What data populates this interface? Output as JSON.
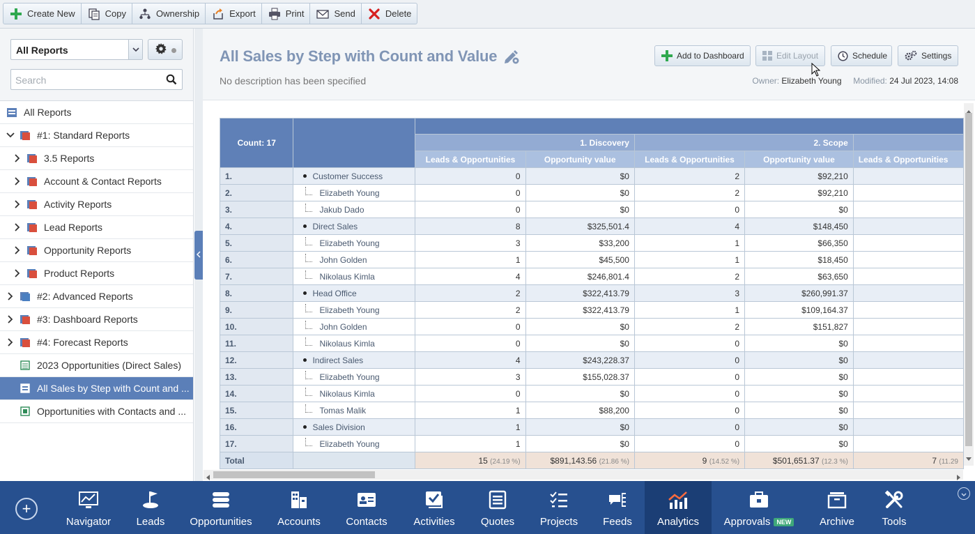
{
  "toolbar": {
    "buttons": [
      {
        "label": "Create New",
        "icon": "plus-icon"
      },
      {
        "label": "Copy",
        "icon": "copy-icon"
      },
      {
        "label": "Ownership",
        "icon": "ownership-icon"
      },
      {
        "label": "Export",
        "icon": "export-icon"
      },
      {
        "label": "Print",
        "icon": "print-icon"
      },
      {
        "label": "Send",
        "icon": "envelope-icon"
      },
      {
        "label": "Delete",
        "icon": "delete-icon"
      }
    ]
  },
  "sidebar": {
    "selector_value": "All Reports",
    "search_placeholder": "Search",
    "items": [
      {
        "label": "All Reports"
      },
      {
        "label": "#1: Standard Reports"
      },
      {
        "label": "3.5 Reports"
      },
      {
        "label": "Account & Contact Reports"
      },
      {
        "label": "Activity Reports"
      },
      {
        "label": "Lead Reports"
      },
      {
        "label": "Opportunity Reports"
      },
      {
        "label": "Product Reports"
      },
      {
        "label": "#2: Advanced Reports"
      },
      {
        "label": "#3: Dashboard Reports"
      },
      {
        "label": "#4: Forecast Reports"
      },
      {
        "label": "2023 Opportunities (Direct Sales)"
      },
      {
        "label": "All Sales by Step with Count and ..."
      },
      {
        "label": "Opportunities with Contacts and ..."
      }
    ]
  },
  "report": {
    "title": "All Sales by Step with Count and Value",
    "description": "No description has been specified",
    "buttons": {
      "add_dashboard": "Add to Dashboard",
      "edit_layout": "Edit Layout",
      "schedule": "Schedule",
      "settings": "Settings"
    },
    "owner_label": "Owner:",
    "owner": "Elizabeth Young",
    "modified_label": "Modified:",
    "modified": "24 Jul 2023, 14:08"
  },
  "table": {
    "count_label": "Count: 17",
    "steps": [
      "1. Discovery",
      "2. Scope"
    ],
    "col_leads": "Leads & Opportunities",
    "col_value": "Opportunity value",
    "rows": [
      {
        "n": "1.",
        "name": "Customer Success",
        "group": true,
        "c1": "0",
        "v1": "$0",
        "c2": "2",
        "v2": "$92,210"
      },
      {
        "n": "2.",
        "name": "Elizabeth Young",
        "group": false,
        "c1": "0",
        "v1": "$0",
        "c2": "2",
        "v2": "$92,210"
      },
      {
        "n": "3.",
        "name": "Jakub Dado",
        "group": false,
        "c1": "0",
        "v1": "$0",
        "c2": "0",
        "v2": "$0"
      },
      {
        "n": "4.",
        "name": "Direct Sales",
        "group": true,
        "c1": "8",
        "v1": "$325,501.4",
        "c2": "4",
        "v2": "$148,450"
      },
      {
        "n": "5.",
        "name": "Elizabeth Young",
        "group": false,
        "c1": "3",
        "v1": "$33,200",
        "c2": "1",
        "v2": "$66,350"
      },
      {
        "n": "6.",
        "name": "John Golden",
        "group": false,
        "c1": "1",
        "v1": "$45,500",
        "c2": "1",
        "v2": "$18,450"
      },
      {
        "n": "7.",
        "name": "Nikolaus Kimla",
        "group": false,
        "c1": "4",
        "v1": "$246,801.4",
        "c2": "2",
        "v2": "$63,650"
      },
      {
        "n": "8.",
        "name": "Head Office",
        "group": true,
        "c1": "2",
        "v1": "$322,413.79",
        "c2": "3",
        "v2": "$260,991.37"
      },
      {
        "n": "9.",
        "name": "Elizabeth Young",
        "group": false,
        "c1": "2",
        "v1": "$322,413.79",
        "c2": "1",
        "v2": "$109,164.37"
      },
      {
        "n": "10.",
        "name": "John Golden",
        "group": false,
        "c1": "0",
        "v1": "$0",
        "c2": "2",
        "v2": "$151,827"
      },
      {
        "n": "11.",
        "name": "Nikolaus Kimla",
        "group": false,
        "c1": "0",
        "v1": "$0",
        "c2": "0",
        "v2": "$0"
      },
      {
        "n": "12.",
        "name": "Indirect Sales",
        "group": true,
        "c1": "4",
        "v1": "$243,228.37",
        "c2": "0",
        "v2": "$0"
      },
      {
        "n": "13.",
        "name": "Elizabeth Young",
        "group": false,
        "c1": "3",
        "v1": "$155,028.37",
        "c2": "0",
        "v2": "$0"
      },
      {
        "n": "14.",
        "name": "Nikolaus Kimla",
        "group": false,
        "c1": "0",
        "v1": "$0",
        "c2": "0",
        "v2": "$0"
      },
      {
        "n": "15.",
        "name": "Tomas Malik",
        "group": false,
        "c1": "1",
        "v1": "$88,200",
        "c2": "0",
        "v2": "$0"
      },
      {
        "n": "16.",
        "name": "Sales Division",
        "group": true,
        "c1": "1",
        "v1": "$0",
        "c2": "0",
        "v2": "$0"
      },
      {
        "n": "17.",
        "name": "Elizabeth Young",
        "group": false,
        "c1": "1",
        "v1": "$0",
        "c2": "0",
        "v2": "$0"
      }
    ],
    "total": {
      "label": "Total",
      "c1": "15",
      "c1_pct": "(24.19 %)",
      "v1": "$891,143.56",
      "v1_pct": "(21.86 %)",
      "c2": "9",
      "c2_pct": "(14.52 %)",
      "v2": "$501,651.37",
      "v2_pct": "(12.3 %)",
      "c3": "7",
      "c3_pct": "(11.29"
    }
  },
  "nav": {
    "items": [
      {
        "label": "Navigator",
        "icon": "navigator-icon"
      },
      {
        "label": "Leads",
        "icon": "leads-icon"
      },
      {
        "label": "Opportunities",
        "icon": "opportunities-icon"
      },
      {
        "label": "Accounts",
        "icon": "accounts-icon"
      },
      {
        "label": "Contacts",
        "icon": "contacts-icon"
      },
      {
        "label": "Activities",
        "icon": "activities-icon"
      },
      {
        "label": "Quotes",
        "icon": "quotes-icon"
      },
      {
        "label": "Projects",
        "icon": "projects-icon"
      },
      {
        "label": "Feeds",
        "icon": "feeds-icon"
      },
      {
        "label": "Analytics",
        "icon": "analytics-icon"
      },
      {
        "label": "Approvals",
        "icon": "approvals-icon",
        "badge": "NEW"
      },
      {
        "label": "Archive",
        "icon": "archive-icon"
      },
      {
        "label": "Tools",
        "icon": "tools-icon"
      }
    ],
    "active": "Analytics"
  },
  "colors": {
    "accent": "#5b7fb8",
    "nav_bg": "#27508f",
    "title": "#8095b5",
    "total_bg": "#f0e2d8"
  }
}
